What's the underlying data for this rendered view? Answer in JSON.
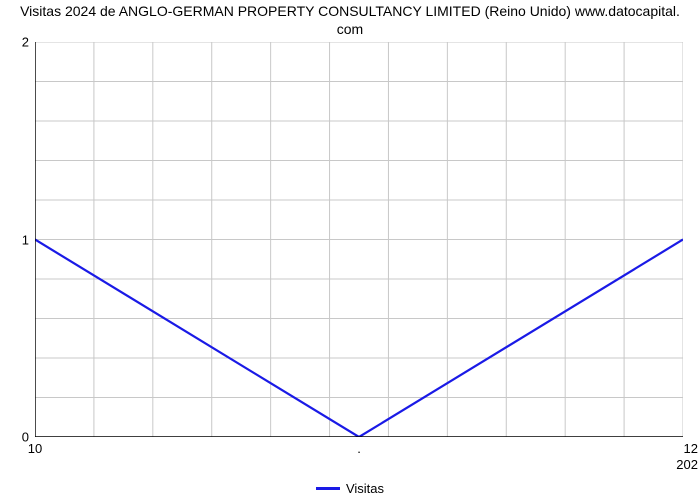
{
  "chart": {
    "type": "line",
    "title_line1": "Visitas 2024 de ANGLO-GERMAN PROPERTY CONSULTANCY LIMITED (Reino Unido) www.datocapital.",
    "title_line2": "com",
    "title_fontsize": 14,
    "title_color": "#000000",
    "background_color": "#ffffff",
    "grid_color": "#c8c8c8",
    "axis_color": "#000000",
    "y": {
      "lim": [
        0,
        2
      ],
      "ticks": [
        0,
        1,
        2
      ],
      "minor_ticks_per_major": 5,
      "label_fontsize": 13
    },
    "x": {
      "lim": [
        10,
        12
      ],
      "ticks": [
        10
      ],
      "far_right_visible_tick_label": "12",
      "far_right_secondary_label": "202",
      "middle_minor_label": ".",
      "vlines_count": 11,
      "label_fontsize": 13
    },
    "series": {
      "label": "Visitas",
      "color": "#1a1ae6",
      "line_width": 2.2,
      "points_x": [
        10,
        11,
        12
      ],
      "points_y": [
        1,
        0,
        1
      ]
    },
    "legend": {
      "label": "Visitas",
      "swatch_color": "#1a1ae6",
      "fontsize": 13
    }
  }
}
